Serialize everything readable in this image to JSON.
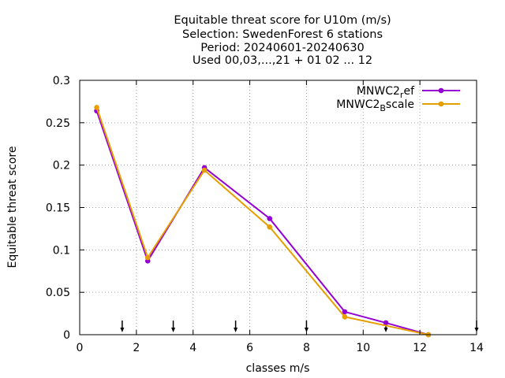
{
  "chart_data": {
    "type": "line",
    "title_lines": [
      "Equitable threat score  for U10m (m/s)",
      "Selection: SwedenForest      6 stations",
      "Period: 20240601-20240630",
      "Used 00,03,...,21 + 01 02 ... 12"
    ],
    "xlabel": "classes m/s",
    "ylabel": "Equitable threat score",
    "xlim": [
      0,
      14
    ],
    "ylim": [
      0,
      0.3
    ],
    "x_ticks": [
      "0",
      "2",
      "4",
      "6",
      "8",
      "10",
      "12",
      "14"
    ],
    "y_ticks": [
      "0",
      "0.05",
      "0.1",
      "0.15",
      "0.2",
      "0.25",
      "0.3"
    ],
    "grid": true,
    "legend_position": "top-right",
    "series": [
      {
        "name": "MNWC2_ref",
        "legend_main": "MNWC2",
        "legend_sub": "r",
        "legend_tail": "ef",
        "color": "#9400d3",
        "x": [
          0.6,
          2.4,
          4.4,
          6.7,
          9.35,
          10.8,
          12.3
        ],
        "y": [
          0.264,
          0.087,
          0.197,
          0.137,
          0.027,
          0.014,
          0.0
        ]
      },
      {
        "name": "MNWC2_Bscale",
        "legend_main": "MNWC2",
        "legend_sub": "B",
        "legend_tail": "scale",
        "color": "#e69f00",
        "x": [
          0.6,
          2.4,
          4.4,
          6.7,
          9.35,
          12.3
        ],
        "y": [
          0.268,
          0.091,
          0.194,
          0.127,
          0.021,
          0.0
        ]
      }
    ],
    "arrow_markers_x": [
      1.5,
      3.3,
      5.5,
      8.0,
      10.8,
      14.0
    ]
  }
}
